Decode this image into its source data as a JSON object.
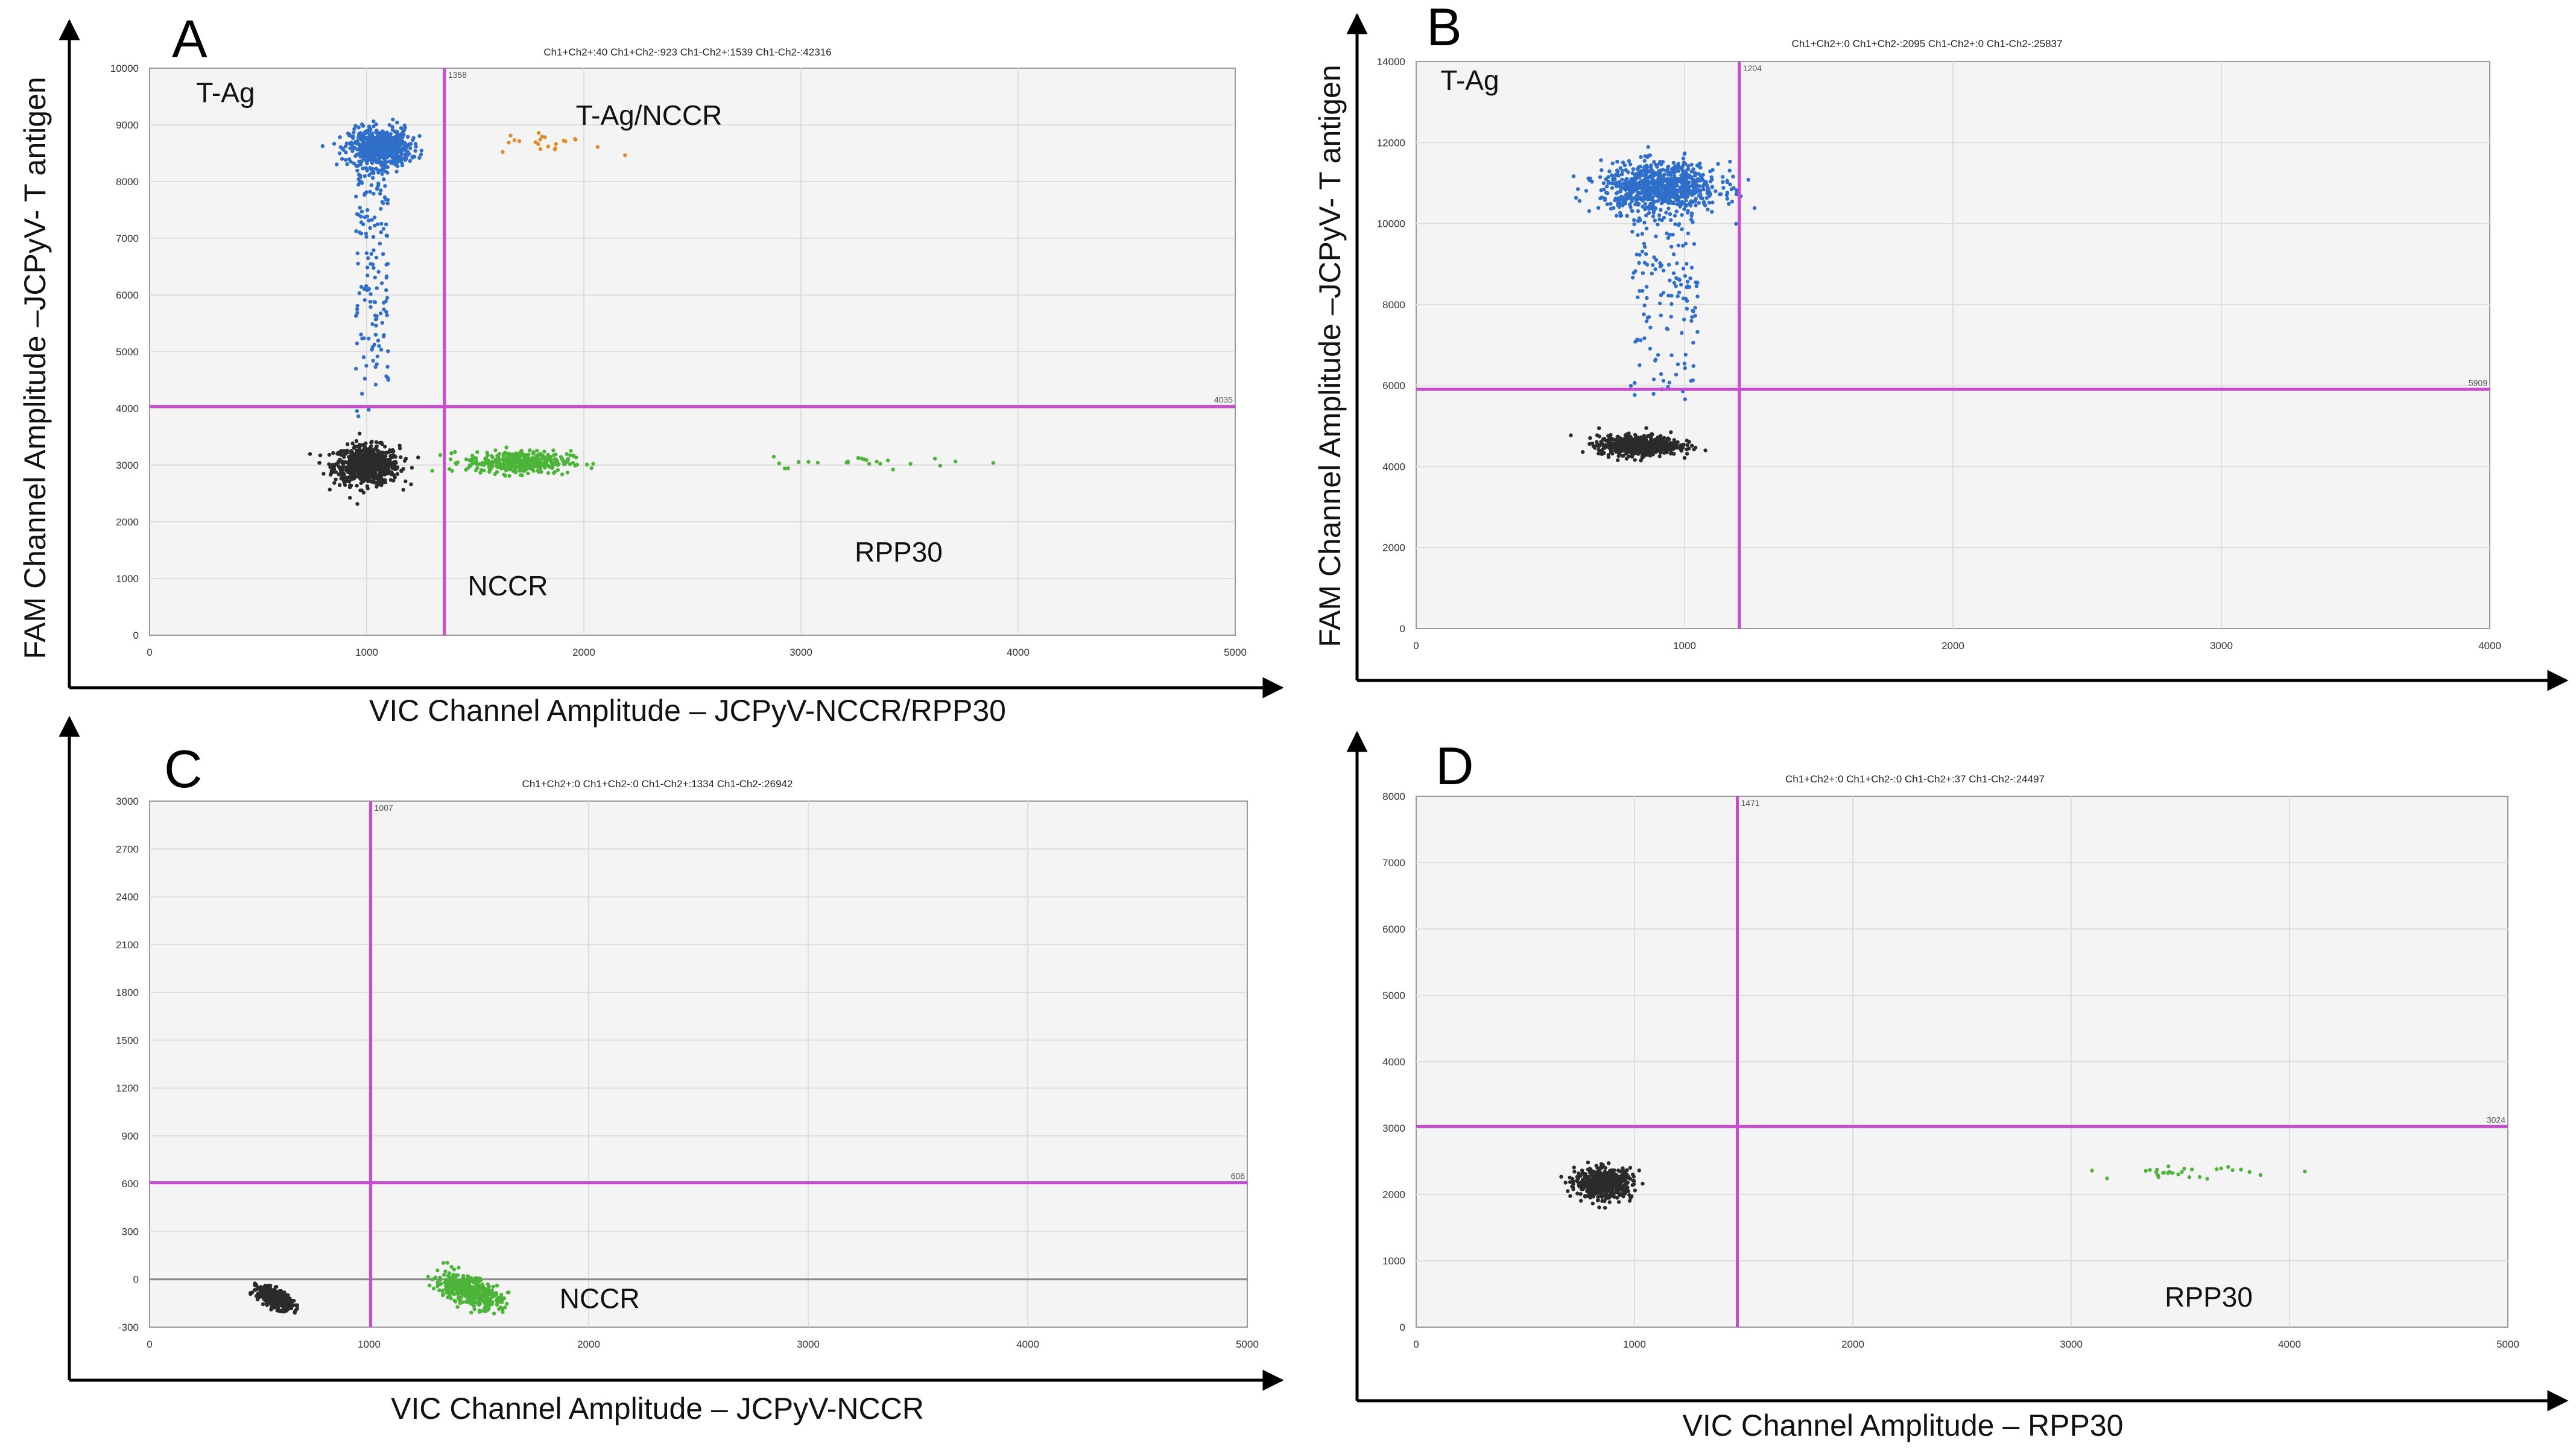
{
  "chart_data": [
    {
      "type": "scatter",
      "panel": "A",
      "summary": "Ch1+Ch2+:40  Ch1+Ch2-:923  Ch1-Ch2+:1539  Ch1-Ch2-:42316",
      "xlabel": "VIC Channel Amplitude – JCPyV-NCCR/RPP30",
      "ylabel": "FAM Channel Amplitude –JCPyV- T antigen",
      "xlim": [
        0,
        5000
      ],
      "ylim": [
        0,
        10000
      ],
      "xticks": [
        0,
        1000,
        2000,
        3000,
        4000,
        5000
      ],
      "yticks": [
        0,
        1000,
        2000,
        3000,
        4000,
        5000,
        6000,
        7000,
        8000,
        9000,
        10000
      ],
      "x_threshold": 1358,
      "y_threshold": 4035,
      "x_threshold_label": "1358",
      "y_threshold_label": "4035",
      "labels": [
        {
          "text": "T-Ag",
          "x": 350,
          "y": 9400
        },
        {
          "text": "T-Ag/NCCR",
          "x": 2300,
          "y": 9000
        },
        {
          "text": "NCCR",
          "x": 1650,
          "y": 700
        },
        {
          "text": "RPP30",
          "x": 3450,
          "y": 1300
        }
      ],
      "clusters": [
        {
          "name": "negative",
          "color": "#2b2b2b",
          "x": 1000,
          "y": 3000,
          "sx": 75,
          "sy": 170,
          "n": 700
        },
        {
          "name": "T-Ag",
          "color": "#2f6fc9",
          "x": 1060,
          "y": 8600,
          "sx": 70,
          "sy": 170,
          "n": 600
        },
        {
          "name": "T-Ag tail",
          "color": "#2f6fc9",
          "x_range": [
            950,
            1100
          ],
          "y_range": [
            3800,
            8200
          ],
          "n": 150
        },
        {
          "name": "NCCR",
          "color": "#4db43a",
          "x": 1700,
          "y": 3050,
          "sx": 120,
          "sy": 100,
          "n": 380
        },
        {
          "name": "RPP30",
          "color": "#4db43a",
          "x": 3350,
          "y": 3050,
          "sx": 250,
          "sy": 50,
          "n": 24
        },
        {
          "name": "T-Ag/NCCR",
          "color": "#e08a2a",
          "x": 1850,
          "y": 8680,
          "sx": 120,
          "sy": 100,
          "n": 22
        }
      ]
    },
    {
      "type": "scatter",
      "panel": "B",
      "summary": "Ch1+Ch2+:0  Ch1+Ch2-:2095  Ch1-Ch2+:0  Ch1-Ch2-:25837",
      "xlabel": "",
      "ylabel": "FAM Channel Amplitude –JCPyV- T antigen",
      "xlim": [
        0,
        4000
      ],
      "ylim": [
        0,
        14000
      ],
      "xticks": [
        0,
        1000,
        2000,
        3000,
        4000
      ],
      "yticks": [
        0,
        2000,
        4000,
        6000,
        8000,
        10000,
        12000,
        14000
      ],
      "x_threshold": 1204,
      "y_threshold": 5909,
      "x_threshold_label": "1204",
      "y_threshold_label": "5909",
      "labels": [
        {
          "text": "T-Ag",
          "x": 200,
          "y": 13300
        }
      ],
      "clusters": [
        {
          "name": "negative",
          "color": "#2b2b2b",
          "x": 830,
          "y": 4520,
          "sx": 75,
          "sy": 120,
          "n": 650
        },
        {
          "name": "T-Ag",
          "color": "#2f6fc9",
          "x": 910,
          "y": 10900,
          "sx": 110,
          "sy": 300,
          "n": 800
        },
        {
          "name": "T-Ag tail",
          "color": "#2f6fc9",
          "x_range": [
            800,
            1050
          ],
          "y_range": [
            5500,
            10300
          ],
          "n": 150
        }
      ]
    },
    {
      "type": "scatter",
      "panel": "C",
      "summary": "Ch1+Ch2+:0  Ch1+Ch2-:0  Ch1-Ch2+:1334  Ch1-Ch2-:26942",
      "xlabel": "VIC Channel Amplitude – JCPyV-NCCR",
      "ylabel": "",
      "xlim": [
        0,
        5000
      ],
      "ylim": [
        -300,
        3000
      ],
      "xticks": [
        0,
        1000,
        2000,
        3000,
        4000,
        5000
      ],
      "yticks": [
        -300,
        0,
        300,
        600,
        900,
        1200,
        1500,
        1800,
        2100,
        2400,
        2700,
        3000
      ],
      "x_threshold": 1007,
      "y_threshold": 606,
      "x_threshold_label": "1007",
      "y_threshold_label": "606",
      "labels": [
        {
          "text": "NCCR",
          "x": 2050,
          "y": -180
        }
      ],
      "clusters": [
        {
          "name": "negative",
          "color": "#2b2b2b",
          "x": 570,
          "y": -120,
          "sx": 40,
          "sy": 28,
          "n": 420,
          "diag": -0.55
        },
        {
          "name": "NCCR",
          "color": "#4db43a",
          "x": 1450,
          "y": -70,
          "sx": 75,
          "sy": 45,
          "n": 420,
          "diag": -0.4
        }
      ]
    },
    {
      "type": "scatter",
      "panel": "D",
      "summary": "Ch1+Ch2+:0  Ch1+Ch2-:0  Ch1-Ch2+:37  Ch1-Ch2-:24497",
      "xlabel": "VIC Channel Amplitude – RPP30",
      "ylabel": "",
      "xlim": [
        0,
        5000
      ],
      "ylim": [
        0,
        8000
      ],
      "xticks": [
        0,
        1000,
        2000,
        3000,
        4000,
        5000
      ],
      "yticks": [
        0,
        1000,
        2000,
        3000,
        4000,
        5000,
        6000,
        7000,
        8000
      ],
      "x_threshold": 1471,
      "y_threshold": 3024,
      "x_threshold_label": "1471",
      "y_threshold_label": "3024",
      "labels": [
        {
          "text": "RPP30",
          "x": 3630,
          "y": 310
        }
      ],
      "clusters": [
        {
          "name": "negative",
          "color": "#2b2b2b",
          "x": 860,
          "y": 2170,
          "sx": 65,
          "sy": 110,
          "n": 550
        },
        {
          "name": "RPP30",
          "color": "#4db43a",
          "x": 3500,
          "y": 2330,
          "sx": 160,
          "sy": 45,
          "n": 30
        }
      ]
    }
  ]
}
